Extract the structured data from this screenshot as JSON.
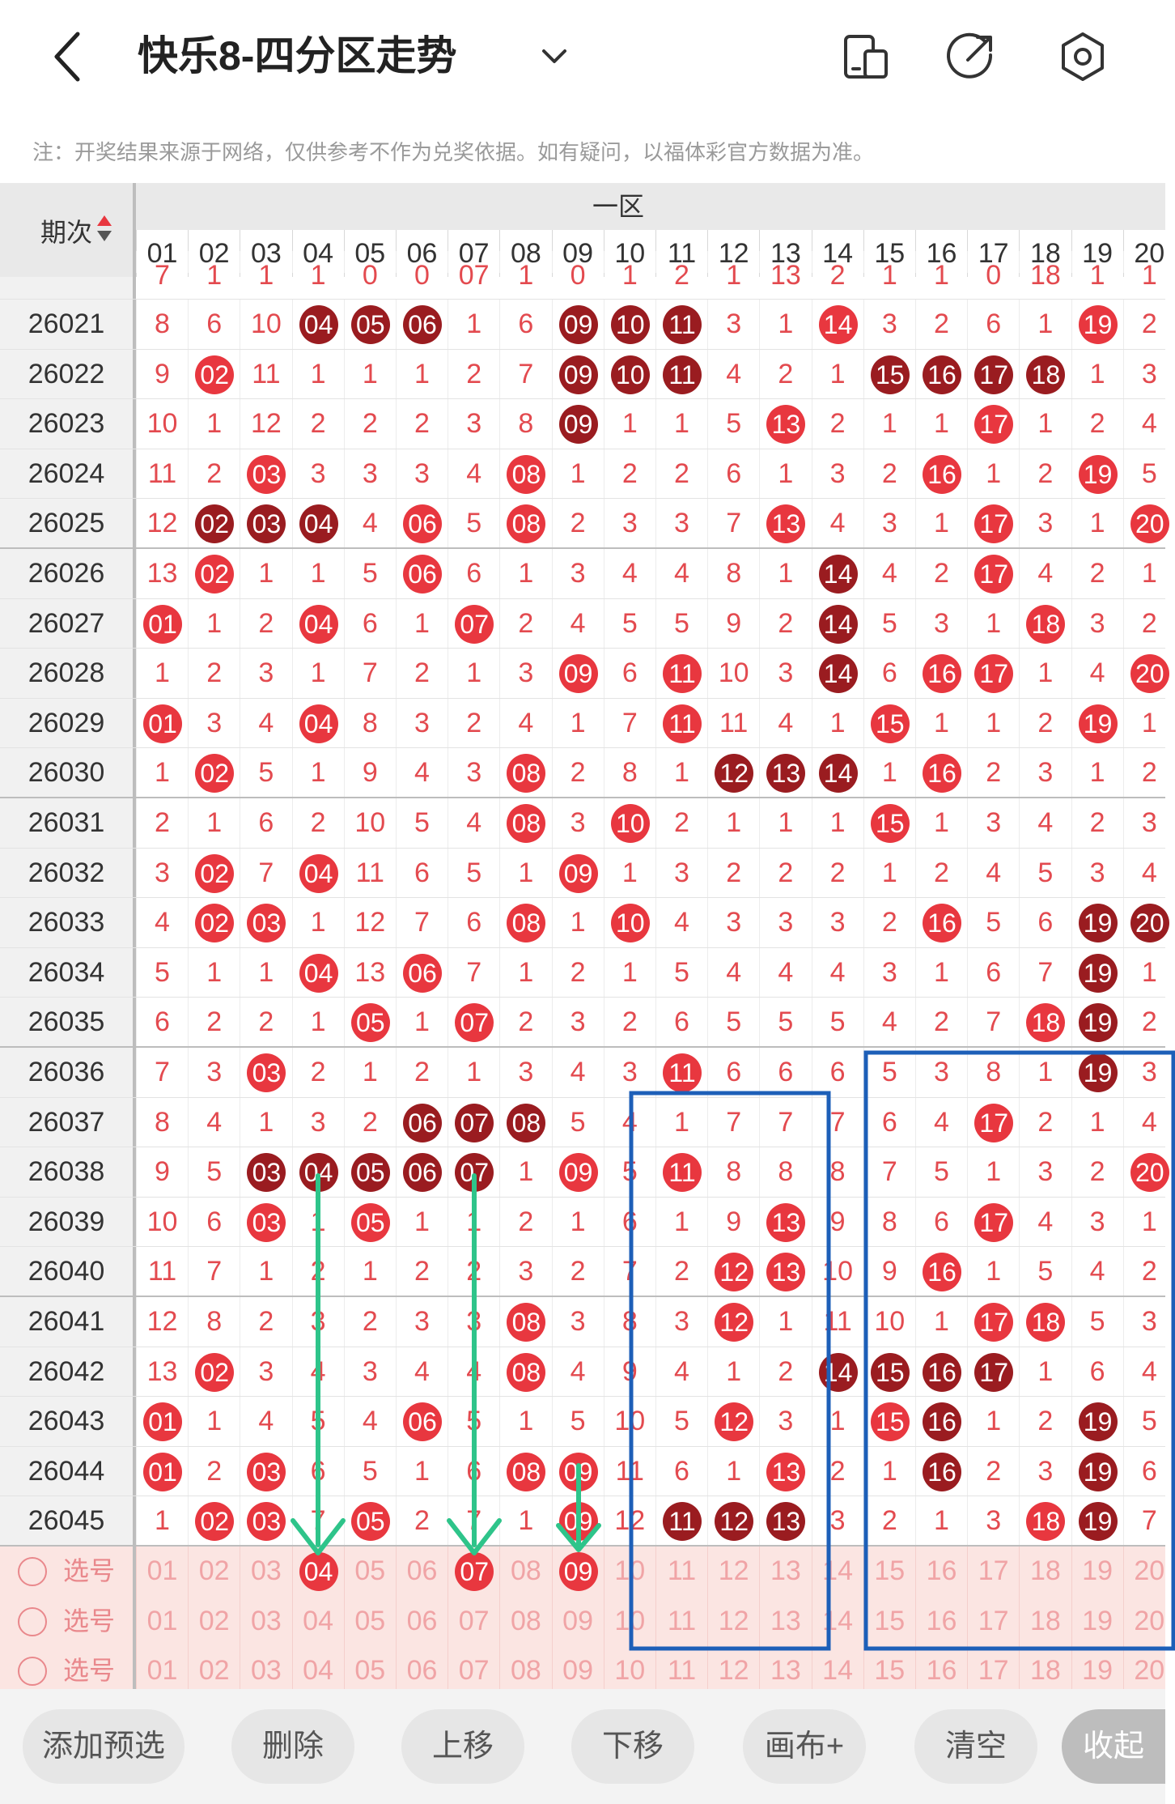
{
  "header": {
    "title": "快乐8-四分区走势",
    "icons": {
      "back": "back-arrow-icon",
      "dropdown": "chevron-down-icon",
      "layout": "layout-icon",
      "share": "share-icon",
      "settings": "settings-icon"
    }
  },
  "note": "注：开奖结果来源于网络，仅供参考不作为兑奖依据。如有疑问，以福体彩官方数据为准。",
  "table": {
    "corner_label": "期次",
    "zone_label": "一区",
    "columns": [
      "01",
      "02",
      "03",
      "04",
      "05",
      "06",
      "07",
      "08",
      "09",
      "10",
      "11",
      "12",
      "13",
      "14",
      "15",
      "16",
      "17",
      "18",
      "19",
      "20"
    ],
    "partial_row": [
      "7",
      "1",
      "1",
      "1",
      "0",
      "0",
      "07",
      "1",
      "0",
      "1",
      "2",
      "1",
      "13",
      "2",
      "1",
      "1",
      "0",
      "18",
      "1",
      "1"
    ],
    "rows": [
      {
        "issue": "26021",
        "cells": [
          "8",
          "6",
          "10",
          "04",
          "05",
          "06",
          "1",
          "6",
          "09",
          "10",
          "11",
          "3",
          "1",
          "14",
          "3",
          "2",
          "6",
          "1",
          "19",
          "2"
        ],
        "balls": {
          "3": "d",
          "4": "d",
          "5": "d",
          "8": "d",
          "9": "d",
          "10": "d",
          "13": "r",
          "18": "r"
        }
      },
      {
        "issue": "26022",
        "cells": [
          "9",
          "02",
          "11",
          "1",
          "1",
          "1",
          "2",
          "7",
          "09",
          "10",
          "11",
          "4",
          "2",
          "1",
          "15",
          "16",
          "17",
          "18",
          "1",
          "3"
        ],
        "balls": {
          "1": "r",
          "8": "d",
          "9": "d",
          "10": "d",
          "14": "d",
          "15": "d",
          "16": "d",
          "17": "d"
        }
      },
      {
        "issue": "26023",
        "cells": [
          "10",
          "1",
          "12",
          "2",
          "2",
          "2",
          "3",
          "8",
          "09",
          "1",
          "1",
          "5",
          "13",
          "2",
          "1",
          "1",
          "17",
          "1",
          "2",
          "4"
        ],
        "balls": {
          "8": "d",
          "12": "r",
          "16": "r"
        }
      },
      {
        "issue": "26024",
        "cells": [
          "11",
          "2",
          "03",
          "3",
          "3",
          "3",
          "4",
          "08",
          "1",
          "2",
          "2",
          "6",
          "1",
          "3",
          "2",
          "16",
          "1",
          "2",
          "19",
          "5"
        ],
        "balls": {
          "2": "r",
          "7": "r",
          "15": "r",
          "18": "r"
        }
      },
      {
        "issue": "26025",
        "cells": [
          "12",
          "02",
          "03",
          "04",
          "4",
          "06",
          "5",
          "08",
          "2",
          "3",
          "3",
          "7",
          "13",
          "4",
          "3",
          "1",
          "17",
          "3",
          "1",
          "20"
        ],
        "balls": {
          "1": "d",
          "2": "d",
          "3": "d",
          "5": "r",
          "7": "r",
          "12": "r",
          "16": "r",
          "19": "r"
        }
      },
      {
        "issue": "26026",
        "cells": [
          "13",
          "02",
          "1",
          "1",
          "5",
          "06",
          "6",
          "1",
          "3",
          "4",
          "4",
          "8",
          "1",
          "14",
          "4",
          "2",
          "17",
          "4",
          "2",
          "1"
        ],
        "balls": {
          "1": "r",
          "5": "r",
          "13": "d",
          "16": "r"
        }
      },
      {
        "issue": "26027",
        "cells": [
          "01",
          "1",
          "2",
          "04",
          "6",
          "1",
          "07",
          "2",
          "4",
          "5",
          "5",
          "9",
          "2",
          "14",
          "5",
          "3",
          "1",
          "18",
          "3",
          "2"
        ],
        "balls": {
          "0": "r",
          "3": "r",
          "6": "r",
          "13": "d",
          "17": "r"
        }
      },
      {
        "issue": "26028",
        "cells": [
          "1",
          "2",
          "3",
          "1",
          "7",
          "2",
          "1",
          "3",
          "09",
          "6",
          "11",
          "10",
          "3",
          "14",
          "6",
          "16",
          "17",
          "1",
          "4",
          "20"
        ],
        "balls": {
          "8": "r",
          "10": "r",
          "13": "d",
          "15": "r",
          "16": "r",
          "19": "r"
        }
      },
      {
        "issue": "26029",
        "cells": [
          "01",
          "3",
          "4",
          "04",
          "8",
          "3",
          "2",
          "4",
          "1",
          "7",
          "11",
          "11",
          "4",
          "1",
          "15",
          "1",
          "1",
          "2",
          "19",
          "1"
        ],
        "balls": {
          "0": "r",
          "3": "r",
          "10": "r",
          "14": "r",
          "18": "r"
        }
      },
      {
        "issue": "26030",
        "cells": [
          "1",
          "02",
          "5",
          "1",
          "9",
          "4",
          "3",
          "08",
          "2",
          "8",
          "1",
          "12",
          "13",
          "14",
          "1",
          "16",
          "2",
          "3",
          "1",
          "2"
        ],
        "balls": {
          "1": "r",
          "7": "r",
          "11": "d",
          "12": "d",
          "13": "d",
          "15": "r"
        }
      },
      {
        "issue": "26031",
        "cells": [
          "2",
          "1",
          "6",
          "2",
          "10",
          "5",
          "4",
          "08",
          "3",
          "10",
          "2",
          "1",
          "1",
          "1",
          "15",
          "1",
          "3",
          "4",
          "2",
          "3"
        ],
        "balls": {
          "7": "r",
          "9": "r",
          "14": "r"
        }
      },
      {
        "issue": "26032",
        "cells": [
          "3",
          "02",
          "7",
          "04",
          "11",
          "6",
          "5",
          "1",
          "09",
          "1",
          "3",
          "2",
          "2",
          "2",
          "1",
          "2",
          "4",
          "5",
          "3",
          "4"
        ],
        "balls": {
          "1": "r",
          "3": "r",
          "8": "r"
        }
      },
      {
        "issue": "26033",
        "cells": [
          "4",
          "02",
          "03",
          "1",
          "12",
          "7",
          "6",
          "08",
          "1",
          "10",
          "4",
          "3",
          "3",
          "3",
          "2",
          "16",
          "5",
          "6",
          "19",
          "20"
        ],
        "balls": {
          "1": "r",
          "2": "r",
          "7": "r",
          "9": "r",
          "15": "r",
          "18": "d",
          "19": "d"
        }
      },
      {
        "issue": "26034",
        "cells": [
          "5",
          "1",
          "1",
          "04",
          "13",
          "06",
          "7",
          "1",
          "2",
          "1",
          "5",
          "4",
          "4",
          "4",
          "3",
          "1",
          "6",
          "7",
          "19",
          "1"
        ],
        "balls": {
          "3": "r",
          "5": "r",
          "18": "d"
        }
      },
      {
        "issue": "26035",
        "cells": [
          "6",
          "2",
          "2",
          "1",
          "05",
          "1",
          "07",
          "2",
          "3",
          "2",
          "6",
          "5",
          "5",
          "5",
          "4",
          "2",
          "7",
          "18",
          "19",
          "2"
        ],
        "balls": {
          "4": "r",
          "6": "r",
          "17": "r",
          "18": "d"
        }
      },
      {
        "issue": "26036",
        "cells": [
          "7",
          "3",
          "03",
          "2",
          "1",
          "2",
          "1",
          "3",
          "4",
          "3",
          "11",
          "6",
          "6",
          "6",
          "5",
          "3",
          "8",
          "1",
          "19",
          "3"
        ],
        "balls": {
          "2": "r",
          "10": "r",
          "18": "d"
        }
      },
      {
        "issue": "26037",
        "cells": [
          "8",
          "4",
          "1",
          "3",
          "2",
          "06",
          "07",
          "08",
          "5",
          "4",
          "1",
          "7",
          "7",
          "7",
          "6",
          "4",
          "17",
          "2",
          "1",
          "4"
        ],
        "balls": {
          "5": "d",
          "6": "d",
          "7": "d",
          "16": "r"
        }
      },
      {
        "issue": "26038",
        "cells": [
          "9",
          "5",
          "03",
          "04",
          "05",
          "06",
          "07",
          "1",
          "09",
          "5",
          "11",
          "8",
          "8",
          "8",
          "7",
          "5",
          "1",
          "3",
          "2",
          "20"
        ],
        "balls": {
          "2": "d",
          "3": "d",
          "4": "d",
          "5": "d",
          "6": "d",
          "8": "r",
          "10": "r",
          "19": "r"
        }
      },
      {
        "issue": "26039",
        "cells": [
          "10",
          "6",
          "03",
          "1",
          "05",
          "1",
          "1",
          "2",
          "1",
          "6",
          "1",
          "9",
          "13",
          "9",
          "8",
          "6",
          "17",
          "4",
          "3",
          "1"
        ],
        "balls": {
          "2": "r",
          "4": "r",
          "12": "r",
          "16": "r"
        }
      },
      {
        "issue": "26040",
        "cells": [
          "11",
          "7",
          "1",
          "2",
          "1",
          "2",
          "2",
          "3",
          "2",
          "7",
          "2",
          "12",
          "13",
          "10",
          "9",
          "16",
          "1",
          "5",
          "4",
          "2"
        ],
        "balls": {
          "11": "r",
          "12": "r",
          "15": "r"
        }
      },
      {
        "issue": "26041",
        "cells": [
          "12",
          "8",
          "2",
          "3",
          "2",
          "3",
          "3",
          "08",
          "3",
          "8",
          "3",
          "12",
          "1",
          "11",
          "10",
          "1",
          "17",
          "18",
          "5",
          "3"
        ],
        "balls": {
          "7": "r",
          "11": "r",
          "16": "r",
          "17": "r"
        }
      },
      {
        "issue": "26042",
        "cells": [
          "13",
          "02",
          "3",
          "4",
          "3",
          "4",
          "4",
          "08",
          "4",
          "9",
          "4",
          "1",
          "2",
          "14",
          "15",
          "16",
          "17",
          "1",
          "6",
          "4"
        ],
        "balls": {
          "1": "r",
          "7": "r",
          "13": "d",
          "14": "d",
          "15": "d",
          "16": "d"
        }
      },
      {
        "issue": "26043",
        "cells": [
          "01",
          "1",
          "4",
          "5",
          "4",
          "06",
          "5",
          "1",
          "5",
          "10",
          "5",
          "12",
          "3",
          "1",
          "15",
          "16",
          "1",
          "2",
          "19",
          "5"
        ],
        "balls": {
          "0": "r",
          "5": "r",
          "11": "r",
          "14": "r",
          "15": "d",
          "18": "d"
        }
      },
      {
        "issue": "26044",
        "cells": [
          "01",
          "2",
          "03",
          "6",
          "5",
          "1",
          "6",
          "08",
          "09",
          "11",
          "6",
          "1",
          "13",
          "2",
          "1",
          "16",
          "2",
          "3",
          "19",
          "6"
        ],
        "balls": {
          "0": "r",
          "2": "r",
          "7": "r",
          "8": "r",
          "12": "r",
          "15": "d",
          "18": "d"
        }
      },
      {
        "issue": "26045",
        "cells": [
          "1",
          "02",
          "03",
          "7",
          "05",
          "2",
          "7",
          "1",
          "09",
          "12",
          "11",
          "12",
          "13",
          "3",
          "2",
          "1",
          "3",
          "18",
          "19",
          "7"
        ],
        "balls": {
          "1": "r",
          "2": "r",
          "4": "r",
          "8": "r",
          "10": "d",
          "11": "d",
          "12": "d",
          "17": "r",
          "18": "d"
        }
      }
    ],
    "select_label": "选号",
    "select_rows": [
      {
        "selected": {
          "3": "04",
          "6": "07",
          "8": "09"
        }
      },
      {
        "selected": {}
      },
      {
        "selected": {}
      }
    ]
  },
  "toolbar": {
    "add": "添加预选",
    "delete": "删除",
    "up": "上移",
    "down": "下移",
    "canvas": "画布+",
    "clear": "清空",
    "collapse": "收起"
  },
  "colors": {
    "ball_red": "#e8373f",
    "ball_dark": "#9a1c20",
    "annotation_blue": "#1d5fb8",
    "annotation_green": "#2ec48a"
  }
}
